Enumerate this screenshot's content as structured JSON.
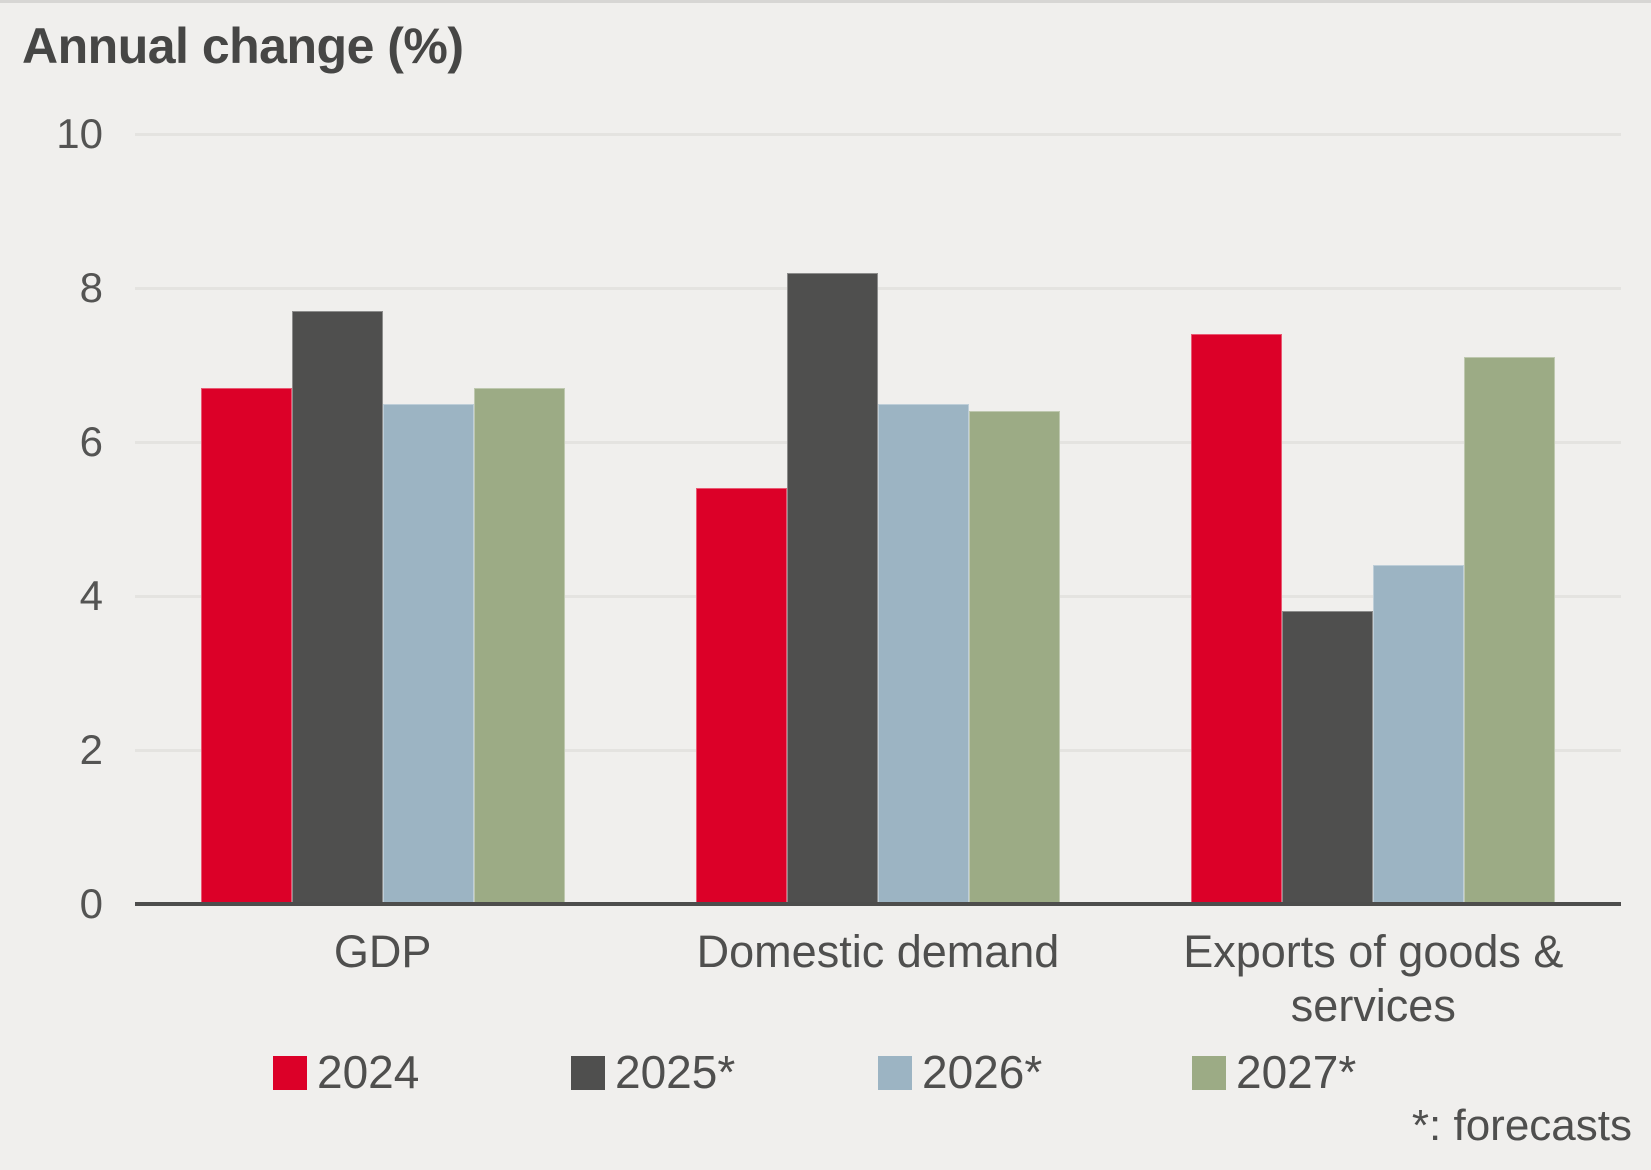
{
  "title": "Annual change (%)",
  "footnote": "*: forecasts",
  "colors": {
    "background": "#f0efed",
    "red": "#dc0028",
    "dark_gray": "#4f4f4e",
    "blue_gray": "#9cb4c3",
    "green": "#9cab85",
    "gridline": "#e4e3e0",
    "axis_line": "#4d4d4c",
    "tick_text": "#545453",
    "label_text": "#4f4f4e",
    "title_text": "#464645"
  },
  "chart_data": {
    "type": "bar",
    "title": "Annual change (%)",
    "categories": [
      "GDP",
      "Domestic demand",
      "Exports of goods & services"
    ],
    "series": [
      {
        "name": "2024",
        "color_key": "red",
        "values": [
          6.7,
          5.4,
          7.4
        ]
      },
      {
        "name": "2025*",
        "color_key": "dark_gray",
        "values": [
          7.7,
          8.2,
          3.8
        ]
      },
      {
        "name": "2026*",
        "color_key": "blue_gray",
        "values": [
          6.5,
          6.5,
          4.4
        ]
      },
      {
        "name": "2027*",
        "color_key": "green",
        "values": [
          6.7,
          6.4,
          7.1
        ]
      }
    ],
    "ylabel": "",
    "xlabel": "",
    "ylim": [
      0,
      10
    ],
    "yticks": [
      0,
      2,
      4,
      6,
      8,
      10
    ],
    "grid": true,
    "legend_position": "bottom"
  }
}
